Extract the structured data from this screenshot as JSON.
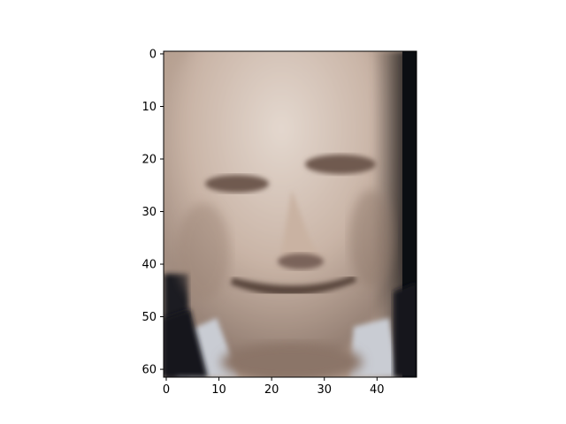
{
  "chart_data": {
    "type": "heatmap",
    "title": "",
    "xlabel": "",
    "ylabel": "",
    "image_content": "grayscale-tinted portrait photograph (48 x 62 pixels)",
    "image_shape": [
      62,
      48
    ],
    "xlim": [
      -0.5,
      47.5
    ],
    "ylim": [
      61.5,
      -0.5
    ],
    "x_ticks": [
      0,
      10,
      20,
      30,
      40
    ],
    "y_ticks": [
      0,
      10,
      20,
      30,
      40,
      50,
      60
    ],
    "grid": false,
    "legend": "none",
    "colors": {
      "skin_light": "#d8c8bc",
      "skin_mid": "#b8a396",
      "skin_shadow": "#7d6a60",
      "background_dark": "#101418",
      "collar": "#c8ccd4",
      "axis": "#000000"
    }
  }
}
